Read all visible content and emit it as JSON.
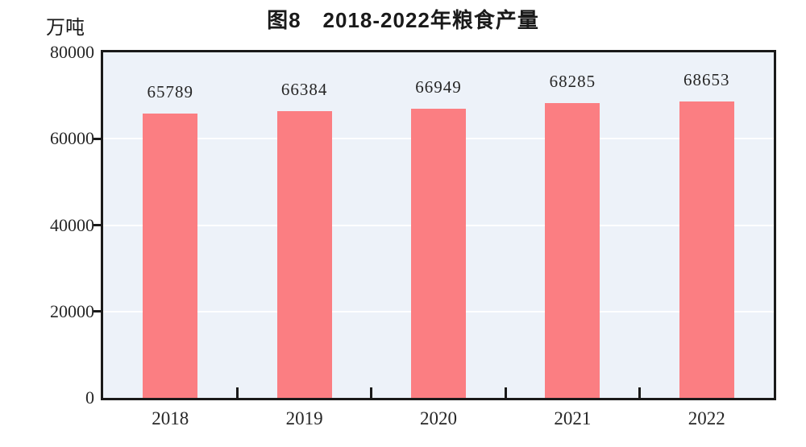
{
  "title": "图8　2018-2022年粮食产量",
  "unit_label": "万吨",
  "colors": {
    "bar": "#fb7e82",
    "plot_background": "#edf2f9",
    "axis": "#1a1a1a",
    "gridline": "#ffffff",
    "page_background": "#ffffff"
  },
  "chart_data": {
    "type": "bar",
    "title": "图8　2018-2022年粮食产量",
    "categories": [
      "2018",
      "2019",
      "2020",
      "2021",
      "2022"
    ],
    "values": [
      65789,
      66384,
      66949,
      68285,
      68653
    ],
    "data_labels_shown": true,
    "xlabel": "",
    "ylabel": "万吨",
    "ylim": [
      0,
      80000
    ],
    "yticks": [
      0,
      20000,
      40000,
      60000,
      80000
    ],
    "grid": "horizontal-white-lines",
    "legend": "none",
    "bar_color": "#fb7e82",
    "plot_background": "#edf2f9"
  }
}
